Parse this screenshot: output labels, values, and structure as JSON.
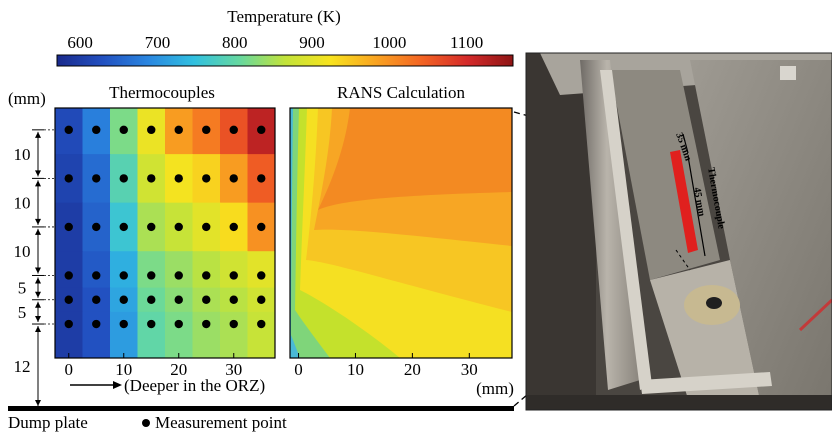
{
  "colorbar": {
    "title": "Temperature (K)",
    "ticks": [
      600,
      700,
      800,
      900,
      1000,
      1100
    ],
    "range": [
      570,
      1160
    ],
    "colormap": [
      "#1a2a8c",
      "#2250c0",
      "#2a86e0",
      "#31c0e0",
      "#66d8a0",
      "#c2e33a",
      "#f8e31e",
      "#f9a321",
      "#f36423",
      "#d42a2a",
      "#8e1515"
    ]
  },
  "left_panel": {
    "title": "Thermocouples",
    "unit_label": "(mm)",
    "x_ticks": [
      "0",
      "10",
      "20",
      "30"
    ],
    "x_note": "(Deeper in the ORZ)",
    "gap_labels": [
      "10",
      "10",
      "10",
      "5",
      "5",
      "12"
    ],
    "x_positions": [
      0,
      5,
      10,
      15,
      20,
      25,
      30,
      35
    ],
    "y_positions": [
      45,
      35,
      25,
      15,
      10,
      5
    ],
    "temperatures_K": [
      [
        620,
        680,
        820,
        910,
        990,
        1020,
        1060,
        1120
      ],
      [
        610,
        660,
        790,
        880,
        920,
        940,
        990,
        1050
      ],
      [
        600,
        650,
        760,
        850,
        870,
        900,
        930,
        1000
      ],
      [
        600,
        640,
        730,
        820,
        840,
        860,
        880,
        900
      ],
      [
        600,
        630,
        720,
        810,
        830,
        850,
        860,
        880
      ],
      [
        600,
        630,
        710,
        800,
        820,
        840,
        850,
        870
      ]
    ]
  },
  "right_panel": {
    "title": "RANS Calculation",
    "x_ticks": [
      "0",
      "10",
      "20",
      "30"
    ],
    "x_unit": "(mm)"
  },
  "legend": {
    "dump_plate": "Dump plate",
    "measurement_point": "Measurement point"
  },
  "photo": {
    "label_thermocouple": "Thermocouple",
    "label_35mm": "35 mm",
    "label_45mm": "45 mm"
  }
}
